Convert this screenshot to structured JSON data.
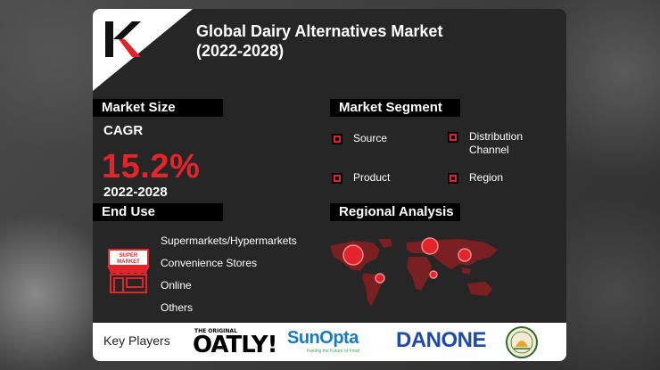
{
  "title": {
    "line1": "Global Dairy Alternatives Market",
    "line2": "(2022-2028)"
  },
  "market_size": {
    "header": "Market Size",
    "cagr_label": "CAGR",
    "cagr_value": "15.2%",
    "period": "2022-2028"
  },
  "market_segment": {
    "header": "Market Segment",
    "items": [
      "Source",
      "Distribution Channel",
      "Product",
      "Region"
    ]
  },
  "end_use": {
    "header": "End Use",
    "icon_label": "SUPER MARKET",
    "items": [
      "Supermarkets/Hypermarkets",
      "Convenience Stores",
      "Online",
      "Others"
    ]
  },
  "regional_analysis": {
    "header": "Regional Analysis"
  },
  "key_players": {
    "label": "Key Players",
    "brands": {
      "oatly_tagline": "THE ORIGINAL",
      "oatly": "OATLY!",
      "sunopta": "SunOpta",
      "sunopta_tagline": "Fueling the Future of Food",
      "danone": "DANONE",
      "hain": "HAIN CELESTIAL"
    }
  },
  "colors": {
    "accent": "#e3252b",
    "card": "#262626",
    "header_bg": "#000000"
  }
}
